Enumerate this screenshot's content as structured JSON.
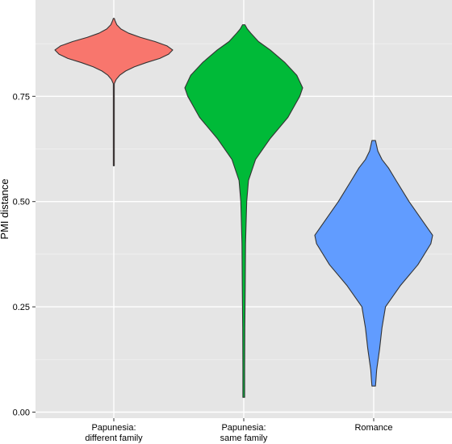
{
  "chart_data": {
    "type": "violin",
    "title": "",
    "xlabel": "",
    "ylabel": "PMI distance",
    "ylim": [
      0.0,
      0.95
    ],
    "y_ticks": [
      {
        "value": 0.0,
        "label": "0.00"
      },
      {
        "value": 0.25,
        "label": "0.25"
      },
      {
        "value": 0.5,
        "label": "0.50"
      },
      {
        "value": 0.75,
        "label": "0.75"
      }
    ],
    "grid": true,
    "legend": "none",
    "categories": [
      {
        "line1": "Papunesia:",
        "line2": "different family"
      },
      {
        "line1": "Papunesia:",
        "line2": "same family"
      },
      {
        "line1": "Romance",
        "line2": ""
      }
    ],
    "series": [
      {
        "category": 0,
        "color": "#F8766D",
        "min": 0.585,
        "max": 0.935,
        "profile": [
          [
            0.585,
            0.002
          ],
          [
            0.6,
            0.002
          ],
          [
            0.65,
            0.002
          ],
          [
            0.7,
            0.002
          ],
          [
            0.75,
            0.003
          ],
          [
            0.77,
            0.005
          ],
          [
            0.78,
            0.008
          ],
          [
            0.79,
            0.04
          ],
          [
            0.8,
            0.1
          ],
          [
            0.81,
            0.2
          ],
          [
            0.82,
            0.35
          ],
          [
            0.83,
            0.55
          ],
          [
            0.84,
            0.78
          ],
          [
            0.85,
            0.93
          ],
          [
            0.86,
            1.0
          ],
          [
            0.87,
            0.9
          ],
          [
            0.88,
            0.7
          ],
          [
            0.89,
            0.45
          ],
          [
            0.9,
            0.25
          ],
          [
            0.91,
            0.12
          ],
          [
            0.92,
            0.05
          ],
          [
            0.93,
            0.02
          ],
          [
            0.935,
            0.005
          ]
        ]
      },
      {
        "category": 1,
        "color": "#00BA38",
        "min": 0.035,
        "max": 0.92,
        "profile": [
          [
            0.035,
            0.015
          ],
          [
            0.1,
            0.015
          ],
          [
            0.2,
            0.018
          ],
          [
            0.3,
            0.025
          ],
          [
            0.4,
            0.03
          ],
          [
            0.45,
            0.04
          ],
          [
            0.5,
            0.05
          ],
          [
            0.55,
            0.08
          ],
          [
            0.6,
            0.2
          ],
          [
            0.65,
            0.45
          ],
          [
            0.7,
            0.75
          ],
          [
            0.75,
            0.95
          ],
          [
            0.77,
            1.0
          ],
          [
            0.8,
            0.9
          ],
          [
            0.83,
            0.7
          ],
          [
            0.86,
            0.45
          ],
          [
            0.88,
            0.25
          ],
          [
            0.9,
            0.12
          ],
          [
            0.91,
            0.06
          ],
          [
            0.92,
            0.02
          ]
        ]
      },
      {
        "category": 2,
        "color": "#619CFF",
        "min": 0.062,
        "max": 0.645,
        "profile": [
          [
            0.062,
            0.03
          ],
          [
            0.08,
            0.04
          ],
          [
            0.1,
            0.05
          ],
          [
            0.13,
            0.08
          ],
          [
            0.15,
            0.1
          ],
          [
            0.2,
            0.14
          ],
          [
            0.25,
            0.2
          ],
          [
            0.3,
            0.45
          ],
          [
            0.35,
            0.75
          ],
          [
            0.4,
            0.97
          ],
          [
            0.42,
            1.0
          ],
          [
            0.45,
            0.85
          ],
          [
            0.5,
            0.6
          ],
          [
            0.55,
            0.38
          ],
          [
            0.58,
            0.25
          ],
          [
            0.6,
            0.14
          ],
          [
            0.62,
            0.07
          ],
          [
            0.645,
            0.03
          ]
        ]
      }
    ]
  }
}
